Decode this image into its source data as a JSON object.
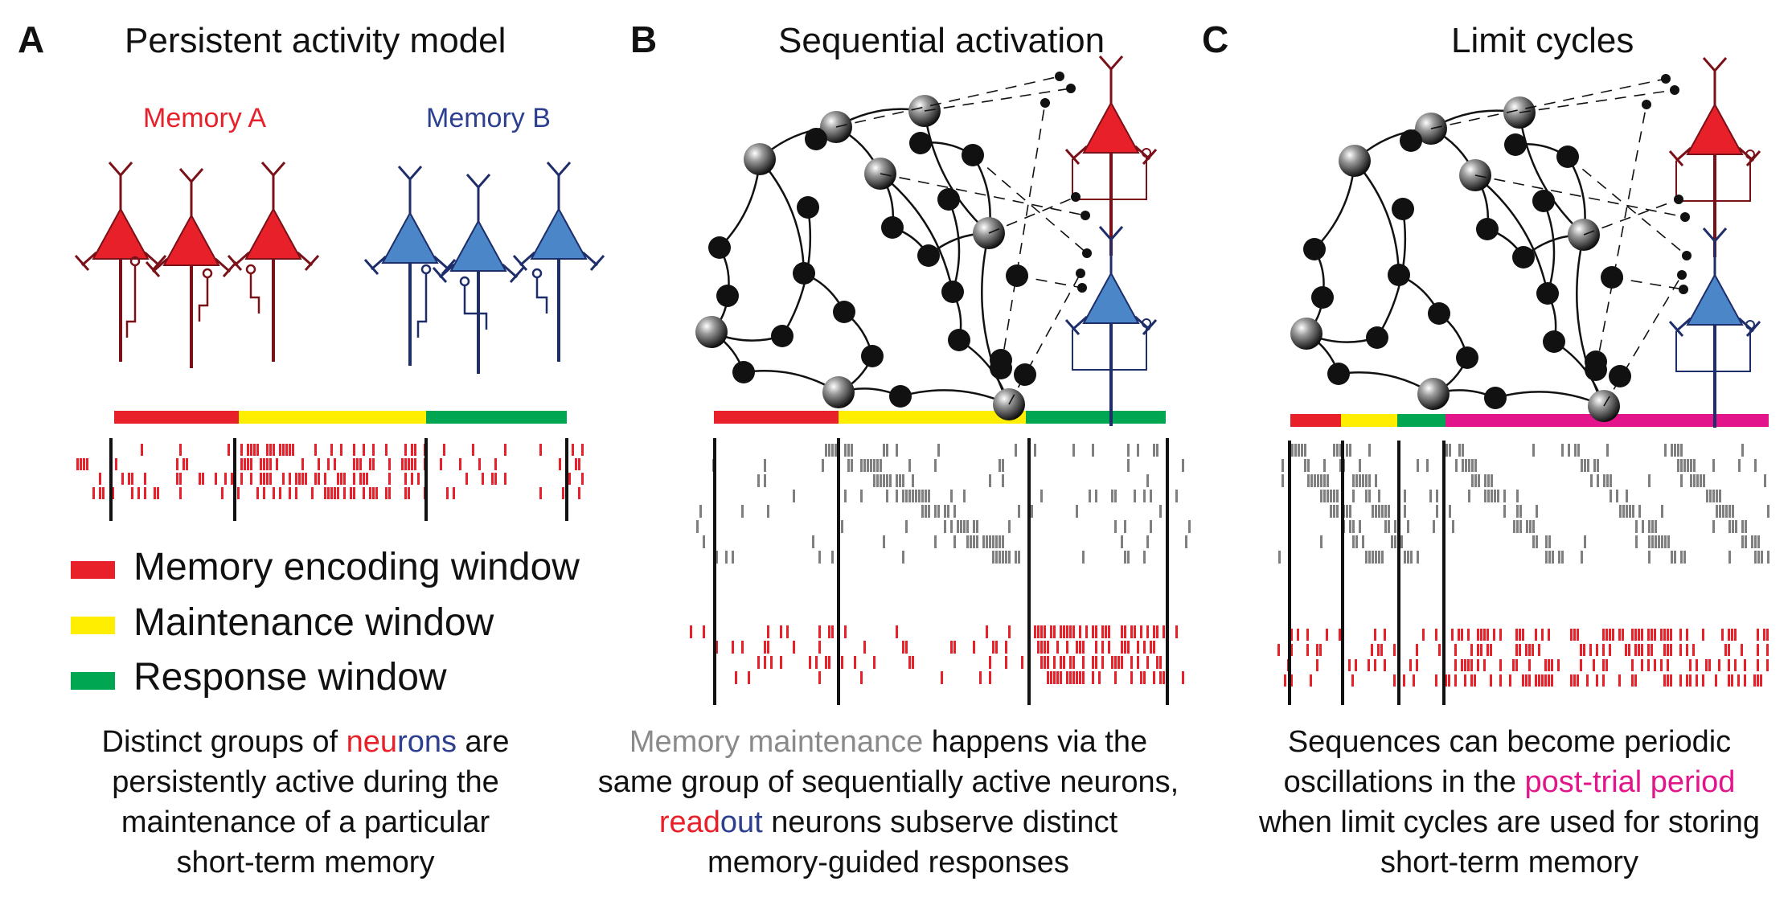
{
  "colors": {
    "red": "#e8202a",
    "yellow": "#ffee00",
    "green": "#00a651",
    "magenta": "#e2158a",
    "blue_neuron": "#4a86c8",
    "blue_text": "#2d3f8f",
    "gray_raster": "#7f7f7f"
  },
  "panels": {
    "A": {
      "letter": "A",
      "title": "Persistent activity model",
      "memory_a": "Memory A",
      "memory_b": "Memory B",
      "caption": {
        "l1_pre": "Distinct groups of ",
        "l1_red": "neu",
        "l1_blue": "rons",
        "l1_post": " are",
        "l2": "persistently active during the",
        "l3": "maintenance of a particular",
        "l4": "short-term memory"
      }
    },
    "B": {
      "letter": "B",
      "title": "Sequential activation",
      "caption": {
        "l1_gray": "Memory maintenance",
        "l1_post": " happens via the",
        "l2": "same group of sequentially active neurons,",
        "l3_red": "read",
        "l3_blue": "out",
        "l3_post": " neurons subserve distinct",
        "l4": "memory-guided responses"
      }
    },
    "C": {
      "letter": "C",
      "title": "Limit cycles",
      "caption": {
        "l1": "Sequences can become periodic",
        "l2_pre": "oscillations in the ",
        "l2_mag": "post-trial period",
        "l3": "when limit cycles are used for storing",
        "l4": "short-term memory"
      }
    }
  },
  "legend": [
    {
      "label": "Memory encoding window",
      "color": "#e8202a"
    },
    {
      "label": "Maintenance window",
      "color": "#ffee00"
    },
    {
      "label": "Response window",
      "color": "#00a651"
    }
  ]
}
